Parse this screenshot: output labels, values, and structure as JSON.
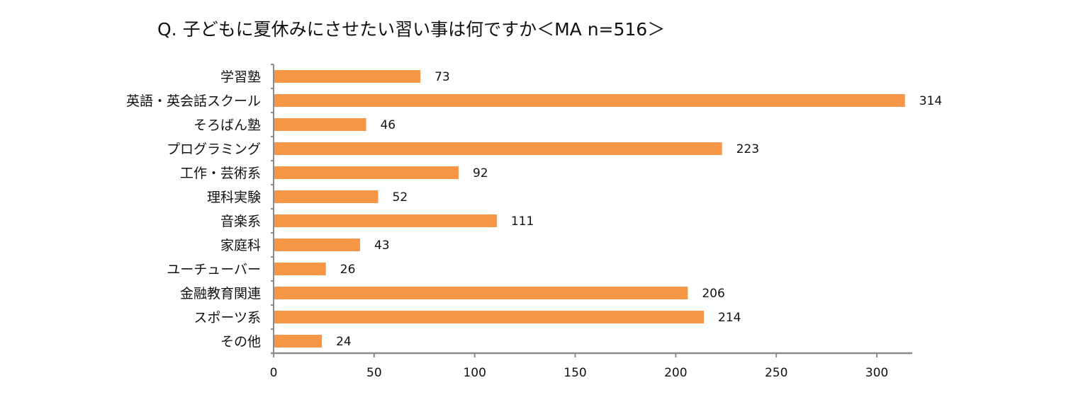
{
  "chart_data": {
    "type": "bar",
    "orientation": "horizontal",
    "title": "Q. 子どもに夏休みにさせたい習い事は何ですか＜MA n=516＞",
    "xlabel": "",
    "ylabel": "",
    "categories": [
      "学習塾",
      "英語・英会話スクール",
      "そろばん塾",
      "プログラミング",
      "工作・芸術系",
      "理科実験",
      "音楽系",
      "家庭科",
      "ユーチューバー",
      "金融教育関連",
      "スポーツ系",
      "その他"
    ],
    "values": [
      73,
      314,
      46,
      223,
      92,
      52,
      111,
      43,
      26,
      206,
      214,
      24
    ],
    "xlim": [
      0,
      318
    ],
    "xticks": [
      0,
      50,
      100,
      150,
      200,
      250,
      300
    ],
    "grid": false,
    "legend": "none",
    "data_labels": true,
    "bar_color": "#F79646",
    "axis_color": "#8c8c8c"
  }
}
